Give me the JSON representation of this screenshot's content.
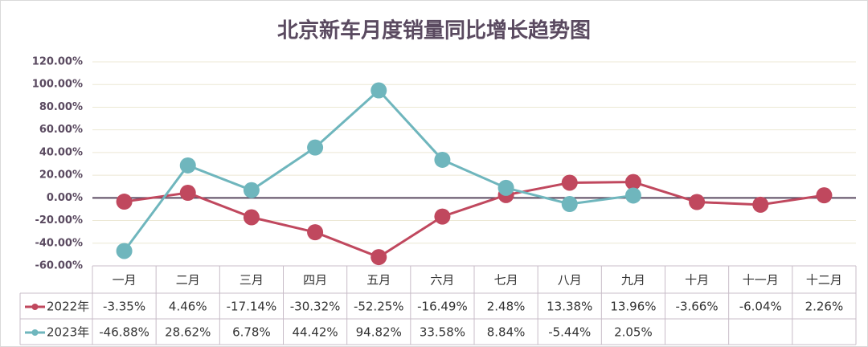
{
  "chart_data": {
    "type": "line",
    "title": "北京新车月度销量同比增长趋势图",
    "categories": [
      "一月",
      "二月",
      "三月",
      "四月",
      "五月",
      "六月",
      "七月",
      "八月",
      "九月",
      "十月",
      "十一月",
      "十二月"
    ],
    "series": [
      {
        "name": "2022年",
        "color": "#c0485e",
        "values": [
          -3.35,
          4.46,
          -17.14,
          -30.32,
          -52.25,
          -16.49,
          2.48,
          13.38,
          13.96,
          -3.66,
          -6.04,
          2.26
        ],
        "value_labels": [
          "-3.35%",
          "4.46%",
          "-17.14%",
          "-30.32%",
          "-52.25%",
          "-16.49%",
          "2.48%",
          "13.38%",
          "13.96%",
          "-3.66%",
          "-6.04%",
          "2.26%"
        ]
      },
      {
        "name": "2023年",
        "color": "#6fb6bd",
        "values": [
          -46.88,
          28.62,
          6.78,
          44.42,
          94.82,
          33.58,
          8.84,
          -5.44,
          2.05,
          null,
          null,
          null
        ],
        "value_labels": [
          "-46.88%",
          "28.62%",
          "6.78%",
          "44.42%",
          "94.82%",
          "33.58%",
          "8.84%",
          "-5.44%",
          "2.05%",
          null,
          null,
          null
        ]
      }
    ],
    "ylim": [
      -60,
      120
    ],
    "yticks": [
      {
        "value": -60,
        "label": "-60.00%"
      },
      {
        "value": -40,
        "label": "-40.00%"
      },
      {
        "value": -20,
        "label": "-20.00%"
      },
      {
        "value": 0,
        "label": "0.00%"
      },
      {
        "value": 20,
        "label": "20.00%"
      },
      {
        "value": 40,
        "label": "40.00%"
      },
      {
        "value": 60,
        "label": "60.00%"
      },
      {
        "value": 80,
        "label": "80.00%"
      },
      {
        "value": 100,
        "label": "100.00%"
      },
      {
        "value": 120,
        "label": "120.00%"
      }
    ],
    "grid": true,
    "legend": "table"
  }
}
